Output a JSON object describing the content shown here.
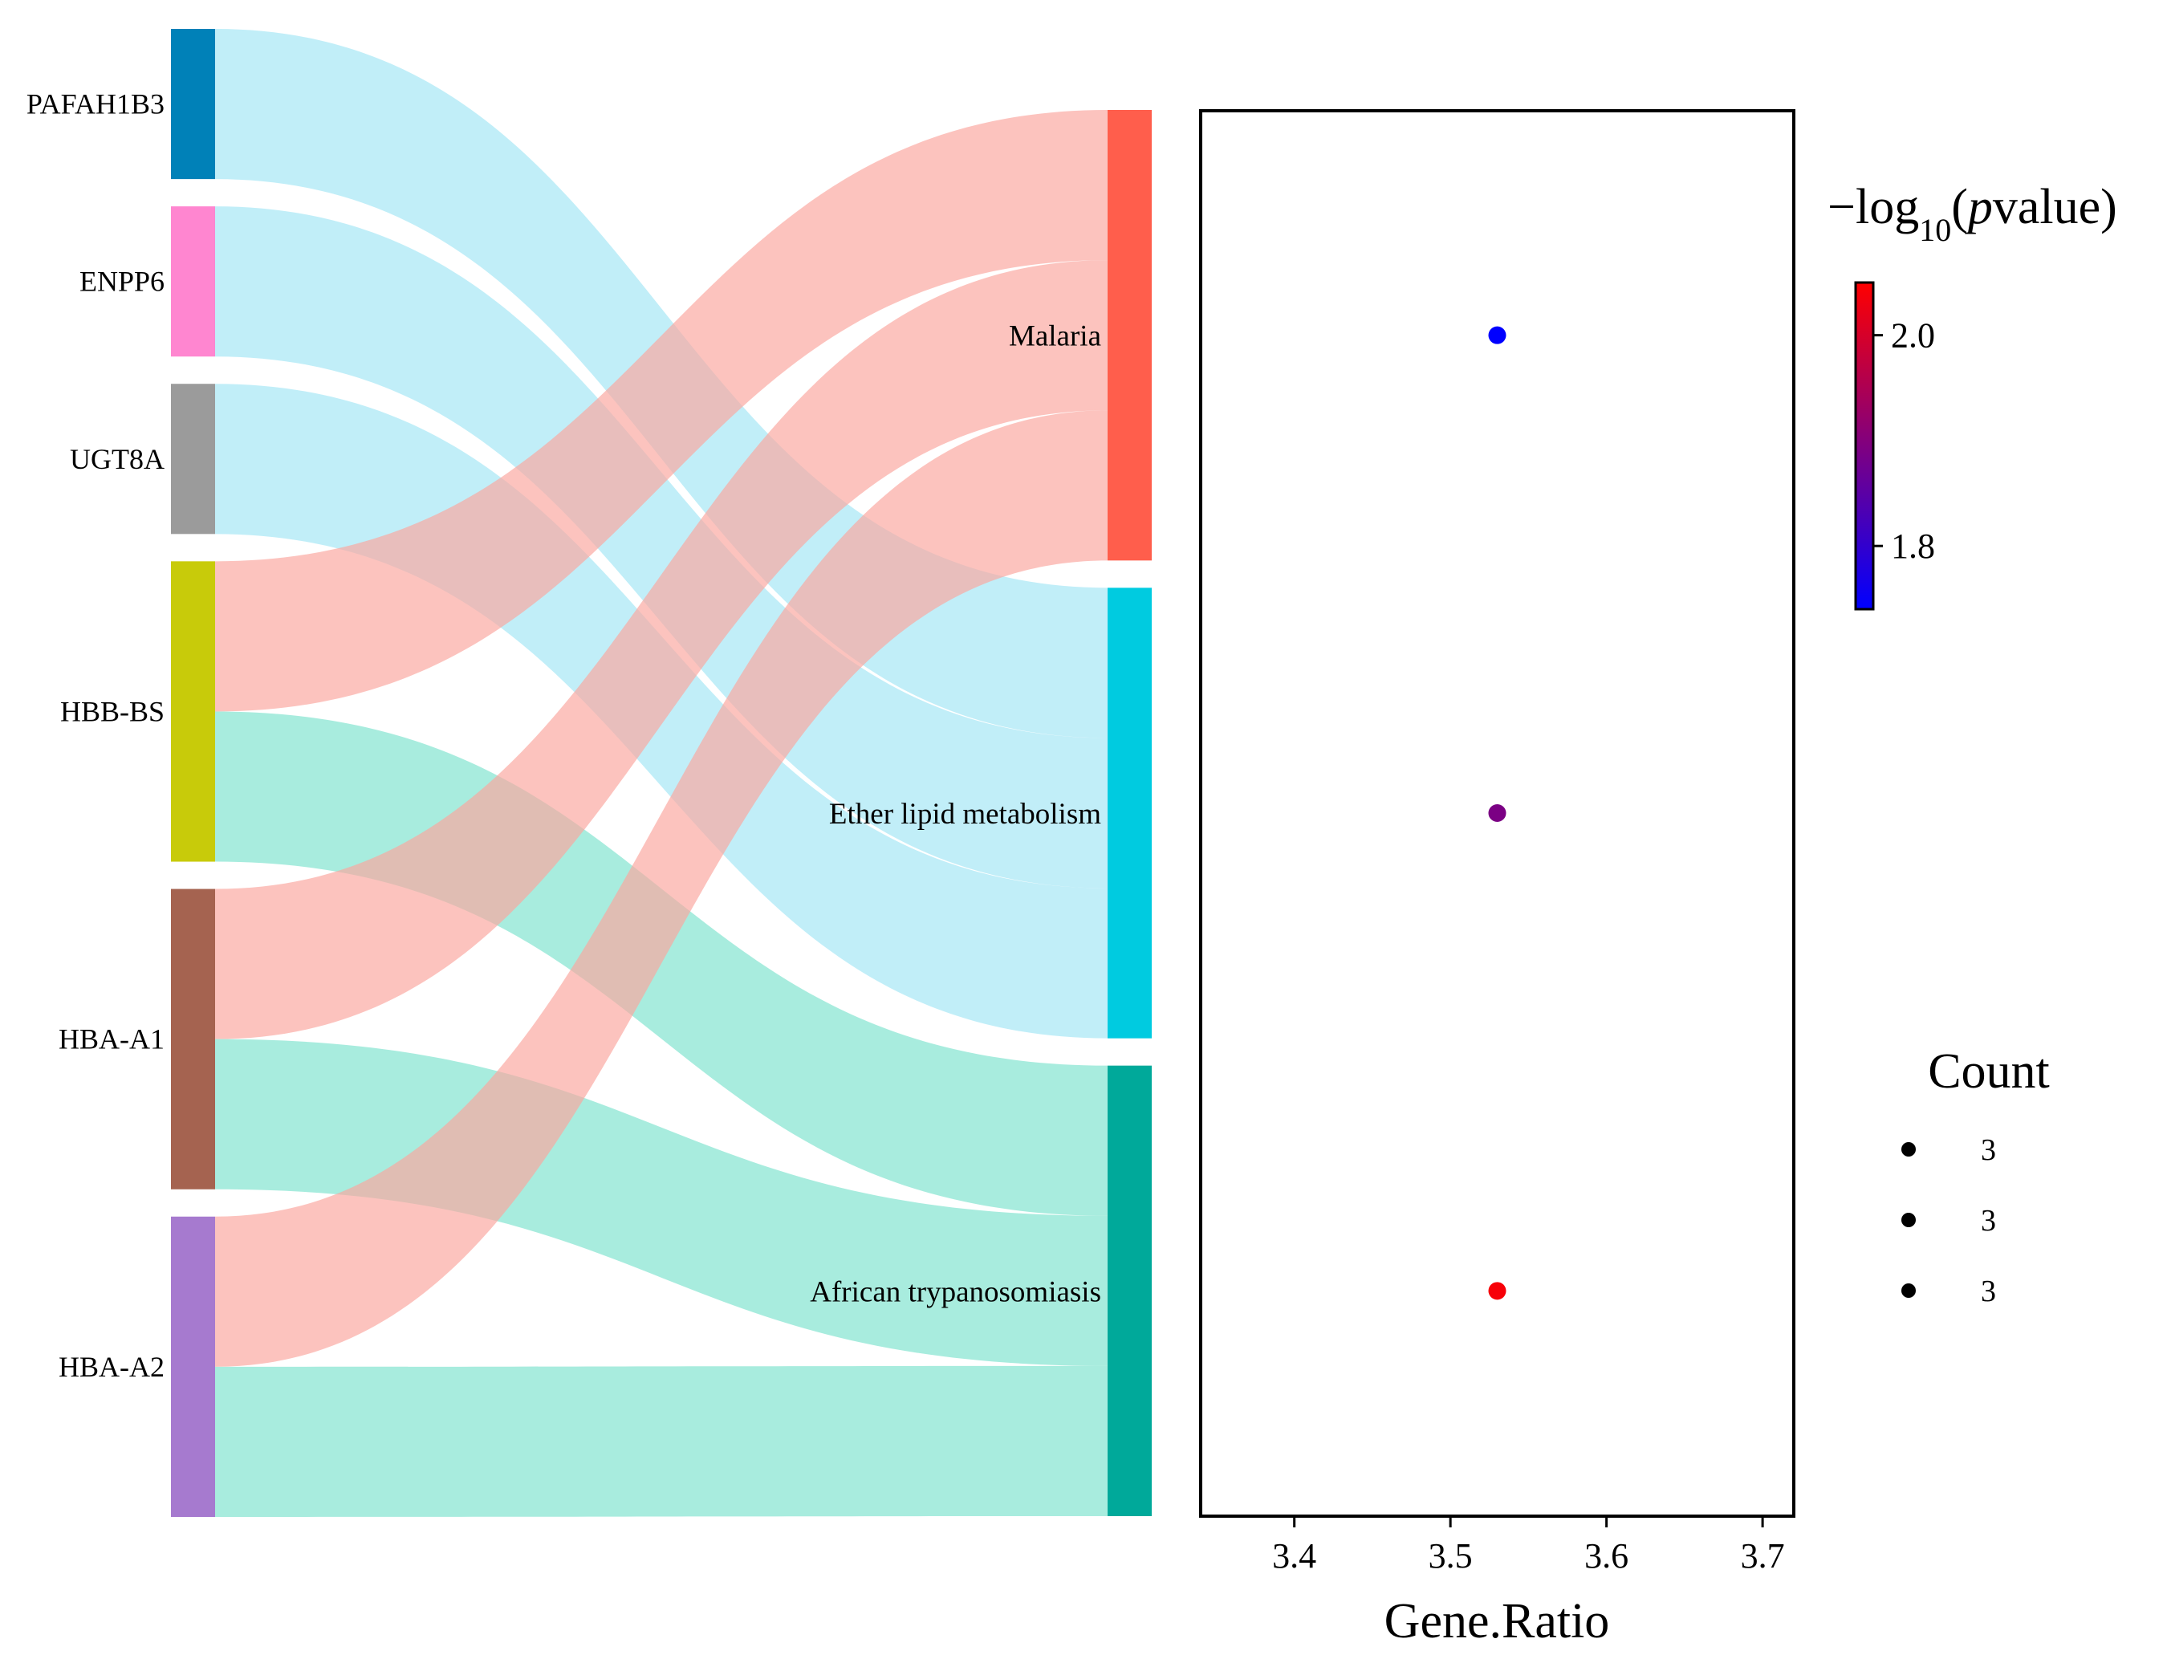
{
  "chart_data": [
    {
      "type": "sankey",
      "genes": [
        {
          "name": "PAFAH1B3",
          "color": "#0081B8"
        },
        {
          "name": "ENPP6",
          "color": "#FF86D0"
        },
        {
          "name": "UGT8A",
          "color": "#9B9B9B"
        },
        {
          "name": "HBB-BS",
          "color": "#C8CB0A"
        },
        {
          "name": "HBA-A1",
          "color": "#A56350"
        },
        {
          "name": "HBA-A2",
          "color": "#A67ACF"
        }
      ],
      "pathways": [
        {
          "name": "Malaria",
          "color": "#FF5E4C",
          "flow_color": "#FBA69F"
        },
        {
          "name": "Ether lipid metabolism",
          "color": "#00CBE0",
          "flow_color": "#A3E6F5"
        },
        {
          "name": "African trypanosomiasis",
          "color": "#00A99A",
          "flow_color": "#7FE3CF"
        }
      ],
      "links": [
        {
          "gene": "PAFAH1B3",
          "pathway": "Ether lipid metabolism",
          "value": 1
        },
        {
          "gene": "ENPP6",
          "pathway": "Ether lipid metabolism",
          "value": 1
        },
        {
          "gene": "UGT8A",
          "pathway": "Ether lipid metabolism",
          "value": 1
        },
        {
          "gene": "HBB-BS",
          "pathway": "Malaria",
          "value": 1
        },
        {
          "gene": "HBB-BS",
          "pathway": "African trypanosomiasis",
          "value": 1
        },
        {
          "gene": "HBA-A1",
          "pathway": "Malaria",
          "value": 1
        },
        {
          "gene": "HBA-A1",
          "pathway": "African trypanosomiasis",
          "value": 1
        },
        {
          "gene": "HBA-A2",
          "pathway": "Malaria",
          "value": 1
        },
        {
          "gene": "HBA-A2",
          "pathway": "African trypanosomiasis",
          "value": 1
        }
      ]
    },
    {
      "type": "scatter",
      "xlabel": "Gene.Ratio",
      "xlim": [
        3.34,
        3.72
      ],
      "xticks": [
        "3.4",
        "3.5",
        "3.6",
        "3.7"
      ],
      "points": [
        {
          "pathway": "Malaria",
          "x": 3.53,
          "log10p": 1.74,
          "count": 3
        },
        {
          "pathway": "Ether lipid metabolism",
          "x": 3.53,
          "log10p": 1.89,
          "count": 3
        },
        {
          "pathway": "African trypanosomiasis",
          "x": 3.53,
          "log10p": 2.04,
          "count": 3
        }
      ],
      "colorbar": {
        "title_prefix": "−log",
        "title_sub": "10",
        "title_open": "(",
        "title_p": "p",
        "title_rest": "value)",
        "range": [
          1.74,
          2.05
        ],
        "ticks": [
          "1.8",
          "2.0"
        ],
        "low_color": "#0000FF",
        "high_color": "#FF0000"
      },
      "count_legend": {
        "title": "Count",
        "labels": [
          "3",
          "3",
          "3"
        ]
      }
    }
  ]
}
